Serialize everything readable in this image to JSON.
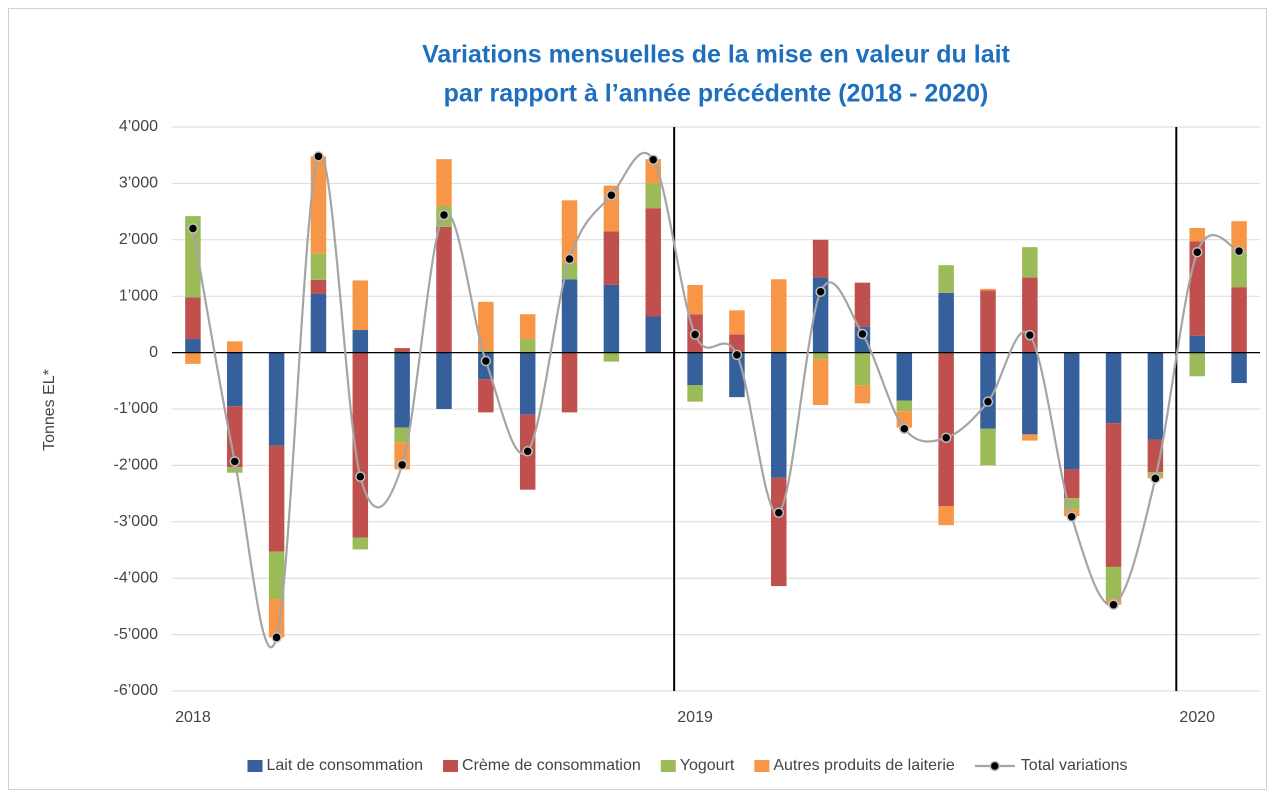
{
  "chart_data": {
    "type": "bar",
    "stacked": true,
    "title": [
      "Variations mensuelles de la mise en valeur du lait",
      "par rapport à l’année précédente (2018 - 2020)"
    ],
    "y_label": "Tonnes EL*",
    "categories": [
      "2018",
      null,
      null,
      null,
      null,
      null,
      null,
      null,
      null,
      null,
      null,
      null,
      "2019",
      null,
      null,
      null,
      null,
      null,
      null,
      null,
      null,
      null,
      null,
      null,
      "2020",
      null
    ],
    "series": [
      {
        "name": "Lait de consommation",
        "color": "#35609b",
        "values": [
          240,
          -950,
          -1650,
          1040,
          400,
          -1330,
          -1000,
          -470,
          -1100,
          1300,
          1200,
          640,
          -580,
          -790,
          -2220,
          1330,
          460,
          -850,
          1060,
          -1350,
          -1450,
          -2070,
          -1250,
          -1540,
          300,
          -540
        ]
      },
      {
        "name": "Crème de consommation",
        "color": "#c0504d",
        "values": [
          740,
          -1080,
          -1880,
          250,
          -3280,
          80,
          2230,
          -590,
          -1330,
          -1060,
          950,
          1920,
          680,
          320,
          -1920,
          670,
          780,
          0,
          -2720,
          1100,
          1330,
          -510,
          -2550,
          -580,
          1670,
          1160
        ]
      },
      {
        "name": "Yogourt",
        "color": "#9bbb59",
        "values": [
          1440,
          -100,
          -840,
          470,
          -210,
          -260,
          370,
          30,
          240,
          290,
          -160,
          440,
          -290,
          0,
          20,
          -120,
          -580,
          -190,
          490,
          -650,
          540,
          -200,
          -570,
          -60,
          -420,
          640
        ]
      },
      {
        "name": "Autres produits de laiterie",
        "color": "#f79646",
        "values": [
          -200,
          200,
          -680,
          1720,
          880,
          -480,
          830,
          870,
          440,
          1110,
          810,
          430,
          520,
          430,
          1280,
          -810,
          -320,
          -290,
          -340,
          30,
          -110,
          -120,
          -100,
          -50,
          240,
          530
        ]
      },
      {
        "name": "Total variations",
        "type": "line",
        "color": "#a5a5a5",
        "marker_color": "#000000",
        "smooth": true,
        "values": [
          2200,
          -1930,
          -5050,
          3480,
          -2200,
          -1990,
          2440,
          -150,
          -1750,
          1660,
          2790,
          3420,
          320,
          -40,
          -2840,
          1080,
          330,
          -1350,
          -1510,
          -870,
          310,
          -2910,
          -4470,
          -2230,
          1780,
          1800
        ]
      }
    ],
    "ylim": [
      -6000,
      4000
    ],
    "yticks": [
      {
        "value": -6000,
        "label": "-6’000"
      },
      {
        "value": -5000,
        "label": "-5’000"
      },
      {
        "value": -4000,
        "label": "-4’000"
      },
      {
        "value": -3000,
        "label": "-3’000"
      },
      {
        "value": -2000,
        "label": "-2’000"
      },
      {
        "value": -1000,
        "label": "-1’000"
      },
      0,
      {
        "value": 1000,
        "label": "1’000"
      },
      {
        "value": 2000,
        "label": "2’000"
      },
      {
        "value": 3000,
        "label": "3’000"
      },
      {
        "value": 4000,
        "label": "4’000"
      }
    ],
    "grid": true,
    "legend": "bottom"
  }
}
